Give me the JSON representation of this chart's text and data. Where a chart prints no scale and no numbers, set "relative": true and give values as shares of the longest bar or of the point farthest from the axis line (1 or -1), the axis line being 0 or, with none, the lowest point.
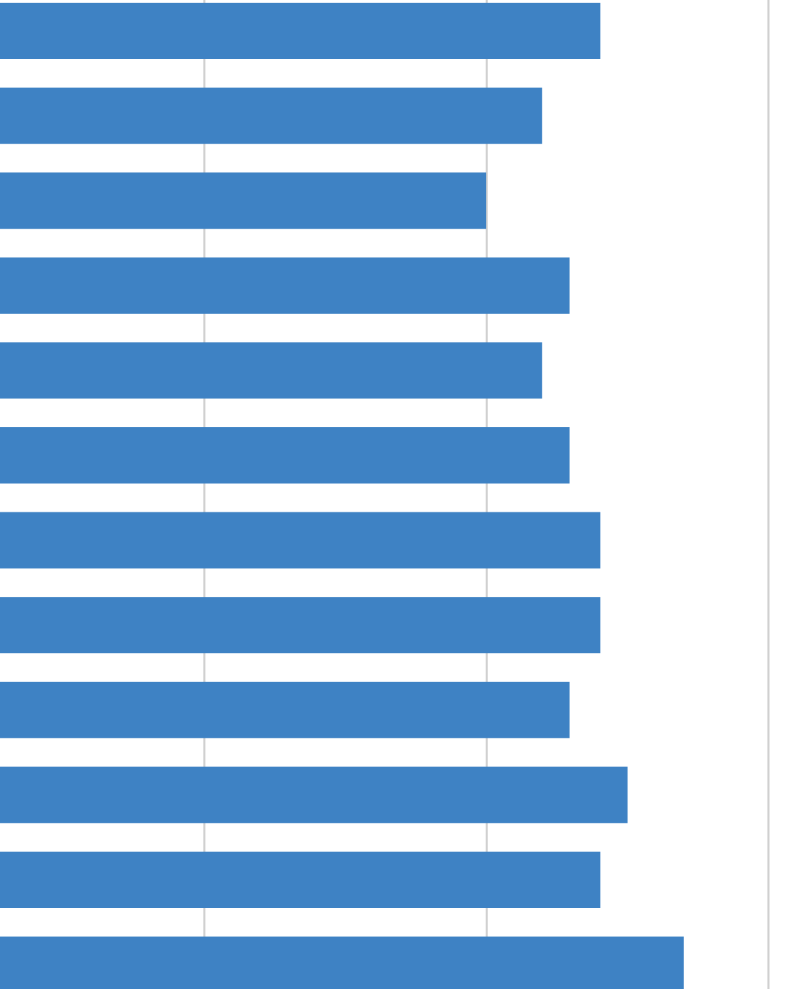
{
  "chart_data": {
    "type": "bar",
    "orientation": "horizontal",
    "relative": true,
    "color": "#3e82c4",
    "categories": [
      null,
      null,
      null,
      null,
      null,
      null,
      null,
      null,
      null,
      null,
      null,
      null
    ],
    "values": [
      0.878,
      0.793,
      0.711,
      0.833,
      0.793,
      0.833,
      0.878,
      0.878,
      0.833,
      0.918,
      0.878,
      1
    ],
    "ref_lines": [
      {
        "axis": "x",
        "value": 0.299,
        "color": "#d0d0d0"
      },
      {
        "axis": "x",
        "value": 0.712,
        "color": "#d0d0d0"
      },
      {
        "axis": "x",
        "value": 1.124,
        "color": "#d0d0d0"
      }
    ]
  }
}
